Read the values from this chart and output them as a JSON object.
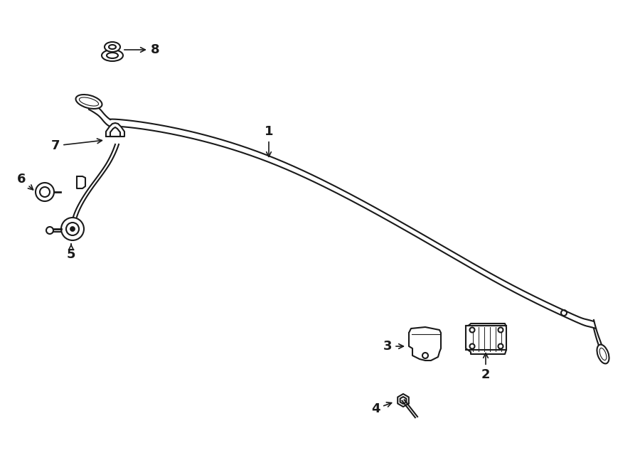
{
  "bg_color": "#ffffff",
  "line_color": "#1a1a1a",
  "lw": 1.5,
  "fig_w": 9.0,
  "fig_h": 6.61,
  "dpi": 100
}
